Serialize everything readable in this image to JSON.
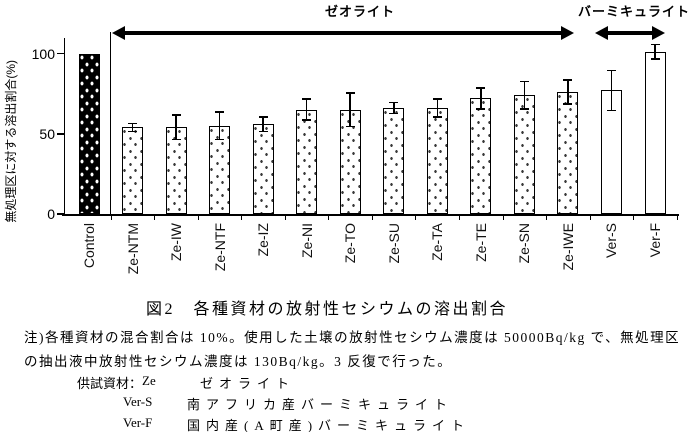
{
  "figure": {
    "caption": "図2　各種資材の放射性セシウムの溶出割合",
    "notes": {
      "line1": "注)各種資材の混合割合は 10%。使用した土壌の放射性セシウム濃度は 50000Bq/kg で、無処理区",
      "line2": "の抽出液中放射性セシウム濃度は 130Bq/kg。3 反復で行った。"
    },
    "materials_legend": {
      "prefix": "供試資材：",
      "items": [
        {
          "code": "Ze",
          "desc": "ゼオライト"
        },
        {
          "code": "Ver-S",
          "desc": "南アフリカ産バーミキュライト"
        },
        {
          "code": "Ver-F",
          "desc": "国内産(A町産)バーミキュライト"
        }
      ]
    }
  },
  "annotations": {
    "zeolite_group": "ゼオライト",
    "vermiculite_group": "バーミキュライト"
  },
  "colors": {
    "ink": "#000000",
    "background": "#ffffff"
  },
  "chart_data": {
    "type": "bar",
    "title": "図2　各種資材の放射性セシウムの溶出割合",
    "xlabel": "",
    "ylabel": "無処理区に対する溶出割合(%)",
    "ylim": [
      0,
      110
    ],
    "yticks": [
      0,
      50,
      100
    ],
    "grid": false,
    "legend_position": "none",
    "error_bars": true,
    "categories": [
      "Control",
      "Ze-NTM",
      "Ze-IW",
      "Ze-NTF",
      "Ze-IZ",
      "Ze-NI",
      "Ze-TO",
      "Ze-SU",
      "Ze-TA",
      "Ze-TE",
      "Ze-SN",
      "Ze-IWE",
      "Ver-S",
      "Ver-F"
    ],
    "values": [
      100,
      54,
      54,
      55,
      56,
      65,
      65,
      66,
      66,
      72,
      74,
      76,
      77,
      101
    ],
    "errors": [
      0,
      3,
      8,
      9,
      5,
      7,
      11,
      4,
      6,
      7,
      9,
      8,
      13,
      5
    ],
    "patterns": [
      "black-dots",
      "dots",
      "dots",
      "dots",
      "dots",
      "dots",
      "dots",
      "dots",
      "dots",
      "dots",
      "dots",
      "dots",
      "plain",
      "plain"
    ],
    "groups": [
      {
        "label": "ゼオライト",
        "from": "Ze-NTM",
        "to": "Ze-IWE"
      },
      {
        "label": "バーミキュライト",
        "from": "Ver-S",
        "to": "Ver-F"
      }
    ]
  }
}
